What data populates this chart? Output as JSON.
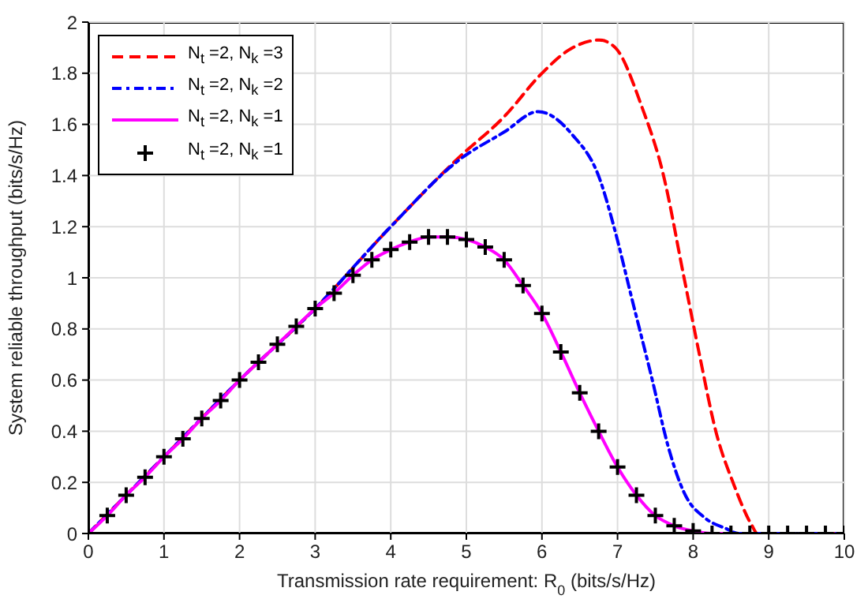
{
  "chart_data": {
    "type": "line",
    "xlabel": "Transmission rate requirement: R$_{0}$ (bits/s/Hz)",
    "ylabel": "System reliable throughput (bits/s/Hz)",
    "xlim": [
      0,
      10
    ],
    "xticks": [
      0,
      1,
      2,
      3,
      4,
      5,
      6,
      7,
      8,
      9,
      10
    ],
    "ylim": [
      0,
      2
    ],
    "yticks": [
      0,
      0.2,
      0.4,
      0.6,
      0.8,
      1,
      1.2,
      1.4,
      1.6,
      1.8,
      2
    ],
    "grid": true,
    "legend": "top left",
    "series": [
      {
        "name": "N$_{t}$ =2, N$_{k}$ =3",
        "color": "#ff0000",
        "line_style": "dashed",
        "marker": "none",
        "x": [
          0,
          1,
          2,
          3,
          4,
          4.9,
          5.5,
          6,
          6.35,
          6.76,
          6.97,
          7.32,
          7.6,
          7.88,
          8.09,
          8.3,
          8.54,
          8.78,
          8.85,
          10
        ],
        "values": [
          0,
          0.3,
          0.6,
          0.88,
          1.2,
          1.47,
          1.63,
          1.8,
          1.89,
          1.93,
          1.9,
          1.67,
          1.41,
          1,
          0.69,
          0.4,
          0.19,
          0.03,
          0,
          0
        ]
      },
      {
        "name": "N$_{t}$ =2, N$_{k}$ =2",
        "color": "#0000ff",
        "line_style": "dashdot",
        "marker": "none",
        "x": [
          0,
          1,
          2,
          3,
          4,
          4.9,
          5.5,
          5.95,
          6.4,
          6.76,
          6.97,
          7.18,
          7.46,
          7.67,
          7.88,
          8.16,
          8.43,
          8.6,
          10
        ],
        "values": [
          0,
          0.3,
          0.6,
          0.88,
          1.2,
          1.46,
          1.57,
          1.65,
          1.56,
          1.39,
          1.18,
          0.93,
          0.6,
          0.34,
          0.16,
          0.06,
          0.02,
          0,
          0
        ]
      },
      {
        "name": "N$_{t}$ =2, N$_{k}$ =1",
        "color": "#ff00ff",
        "line_style": "solid",
        "marker": "none",
        "x": [
          0,
          0.25,
          0.5,
          0.75,
          1,
          1.25,
          1.5,
          1.75,
          2,
          2.25,
          2.5,
          2.75,
          3,
          3.25,
          3.5,
          3.75,
          4,
          4.25,
          4.5,
          4.75,
          5,
          5.25,
          5.5,
          5.75,
          6,
          6.25,
          6.5,
          6.75,
          7,
          7.25,
          7.5,
          7.75,
          8,
          8.25,
          8.5
        ],
        "values": [
          0,
          0.07,
          0.15,
          0.22,
          0.3,
          0.37,
          0.45,
          0.52,
          0.6,
          0.67,
          0.74,
          0.81,
          0.88,
          0.94,
          1.01,
          1.07,
          1.11,
          1.14,
          1.16,
          1.16,
          1.15,
          1.12,
          1.07,
          0.97,
          0.86,
          0.71,
          0.55,
          0.4,
          0.26,
          0.15,
          0.07,
          0.03,
          0.01,
          0,
          0
        ]
      },
      {
        "name": "N$_{t}$ =2, N$_{k}$ =1",
        "type": "scatter",
        "color": "#000000",
        "marker": "cross",
        "x": [
          0,
          0.25,
          0.5,
          0.75,
          1,
          1.25,
          1.5,
          1.75,
          2,
          2.25,
          2.5,
          2.75,
          3,
          3.25,
          3.5,
          3.75,
          4,
          4.25,
          4.5,
          4.75,
          5,
          5.25,
          5.5,
          5.75,
          6,
          6.25,
          6.5,
          6.75,
          7,
          7.25,
          7.5,
          7.75,
          8,
          8.25,
          8.5,
          8.75,
          9,
          9.25,
          9.5,
          9.75,
          10
        ],
        "values": [
          0,
          0.07,
          0.15,
          0.22,
          0.3,
          0.37,
          0.45,
          0.52,
          0.6,
          0.67,
          0.74,
          0.81,
          0.88,
          0.94,
          1.01,
          1.07,
          1.11,
          1.14,
          1.16,
          1.16,
          1.15,
          1.12,
          1.07,
          0.97,
          0.86,
          0.71,
          0.55,
          0.4,
          0.26,
          0.15,
          0.07,
          0.03,
          0.01,
          0,
          0,
          0,
          0,
          0,
          0,
          0,
          0
        ]
      }
    ]
  }
}
